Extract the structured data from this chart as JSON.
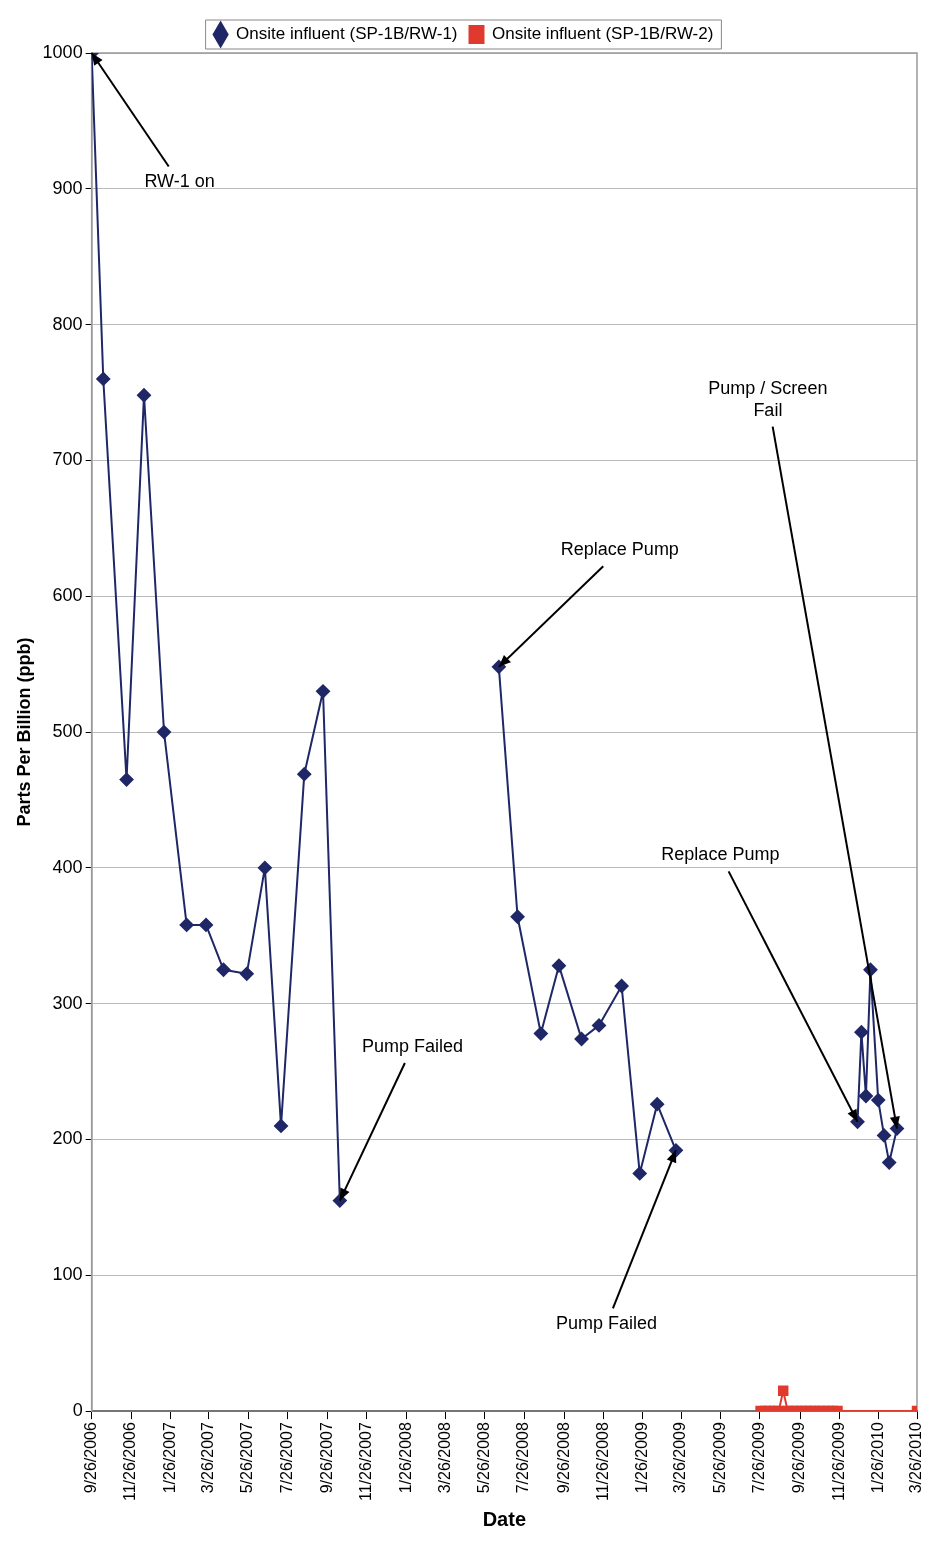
{
  "chart_data": {
    "type": "line",
    "xlabel": "Date",
    "ylabel": "Parts Per Billion (ppb)",
    "xlim": [
      "2006-09-26",
      "2010-03-26"
    ],
    "xticks": [
      {
        "value": "2006-09-26",
        "label": "9/26/2006"
      },
      {
        "value": "2006-11-26",
        "label": "11/26/2006"
      },
      {
        "value": "2007-01-26",
        "label": "1/26/2007"
      },
      {
        "value": "2007-03-26",
        "label": "3/26/2007"
      },
      {
        "value": "2007-05-26",
        "label": "5/26/2007"
      },
      {
        "value": "2007-07-26",
        "label": "7/26/2007"
      },
      {
        "value": "2007-09-26",
        "label": "9/26/2007"
      },
      {
        "value": "2007-11-26",
        "label": "11/26/2007"
      },
      {
        "value": "2008-01-26",
        "label": "1/26/2008"
      },
      {
        "value": "2008-03-26",
        "label": "3/26/2008"
      },
      {
        "value": "2008-05-26",
        "label": "5/26/2008"
      },
      {
        "value": "2008-07-26",
        "label": "7/26/2008"
      },
      {
        "value": "2008-09-26",
        "label": "9/26/2008"
      },
      {
        "value": "2008-11-26",
        "label": "11/26/2008"
      },
      {
        "value": "2009-01-26",
        "label": "1/26/2009"
      },
      {
        "value": "2009-03-26",
        "label": "3/26/2009"
      },
      {
        "value": "2009-05-26",
        "label": "5/26/2009"
      },
      {
        "value": "2009-07-26",
        "label": "7/26/2009"
      },
      {
        "value": "2009-09-26",
        "label": "9/26/2009"
      },
      {
        "value": "2009-11-26",
        "label": "11/26/2009"
      },
      {
        "value": "2010-01-26",
        "label": "1/26/2010"
      },
      {
        "value": "2010-03-26",
        "label": "3/26/2010"
      }
    ],
    "ylim": [
      0,
      1000
    ],
    "yticks": [
      0,
      100,
      200,
      300,
      400,
      500,
      600,
      700,
      800,
      900,
      1000
    ],
    "grid": "y",
    "legend": "top",
    "marker": "diamond",
    "line_style": "solid",
    "series": [
      {
        "name": "Onsite influent (SP-1B/RW-1)",
        "color": "#1f2766",
        "x": [
          "2006-09-26",
          "2006-10-14",
          "2006-11-19",
          "2006-12-16",
          "2007-01-16",
          "2007-02-20",
          "2007-03-22",
          "2007-04-18",
          "2007-05-24",
          "2007-06-21",
          "2007-07-16",
          "2007-08-21",
          "2007-09-19",
          "2007-10-15",
          "2008-02-01",
          "2008-06-17",
          "2008-07-16",
          "2008-08-21",
          "2008-09-18",
          "2008-10-23",
          "2008-11-19",
          "2008-12-24",
          "2009-01-21",
          "2009-02-17",
          "2009-03-18",
          "2009-08-01",
          "2009-12-24",
          "2009-12-30",
          "2010-01-06",
          "2010-01-13",
          "2010-01-25",
          "2010-02-03",
          "2010-02-11",
          "2010-02-23"
        ],
        "values": [
          1000,
          760,
          465,
          748,
          500,
          358,
          358,
          325,
          322,
          400,
          210,
          469,
          530,
          155,
          null,
          548,
          364,
          278,
          328,
          274,
          284,
          313,
          175,
          226,
          192,
          null,
          213,
          279,
          232,
          325,
          229,
          203,
          183,
          208
        ]
      },
      {
        "name": "Onsite influent (SP-1B/RW-2)",
        "color": "#e03a2f",
        "marker": "square",
        "x": [
          "2009-07-27",
          "2009-08-03",
          "2009-08-10",
          "2009-08-17",
          "2009-08-24",
          "2009-08-31",
          "2009-09-07",
          "2009-09-14",
          "2009-09-21",
          "2009-09-28",
          "2009-10-05",
          "2009-10-12",
          "2009-10-19",
          "2009-10-26",
          "2009-11-02",
          "2009-11-09",
          "2009-11-16",
          "2009-11-23",
          "2010-03-26"
        ],
        "values": [
          0,
          0,
          0,
          0,
          0,
          15,
          0,
          0,
          0,
          0,
          0,
          0,
          0,
          0,
          0,
          0,
          0,
          0,
          0
        ]
      }
    ],
    "annotations": [
      {
        "text": "RW-1 on",
        "x": "2006-09-26",
        "y": 1000
      },
      {
        "text": "Pump Failed",
        "x": "2007-10-15",
        "y": 155
      },
      {
        "text": "Replace Pump",
        "x": "2008-06-17",
        "y": 548
      },
      {
        "text": "Pump Failed",
        "x": "2009-03-18",
        "y": 192
      },
      {
        "text": "Replace Pump",
        "x": "2009-12-24",
        "y": 213
      },
      {
        "text": "Pump / Screen Fail",
        "x": "2010-02-23",
        "y": 208
      }
    ]
  }
}
